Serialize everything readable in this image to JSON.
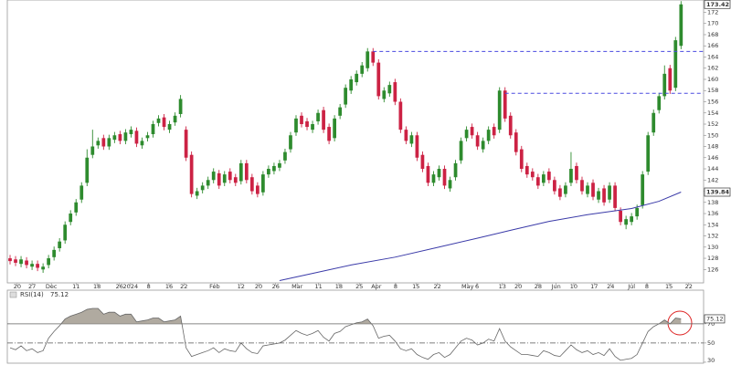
{
  "chart_data": [
    {
      "type": "candlestick",
      "xlim": [
        -0.5,
        126.1
      ],
      "xticks": [
        {
          "value": 1.3,
          "label": "20"
        },
        {
          "value": 4,
          "label": "27"
        },
        {
          "value": 7.5,
          "label": "Dec"
        },
        {
          "value": 12,
          "label": "11"
        },
        {
          "value": 15.8,
          "label": "18"
        },
        {
          "value": 19.9,
          "label": "26"
        },
        {
          "value": 21.9,
          "label": "2024"
        },
        {
          "value": 25.2,
          "label": "8"
        },
        {
          "value": 28.9,
          "label": "16"
        },
        {
          "value": 31.6,
          "label": "22"
        },
        {
          "value": 37.2,
          "label": "Feb"
        },
        {
          "value": 42,
          "label": "12"
        },
        {
          "value": 45.2,
          "label": "20"
        },
        {
          "value": 48.3,
          "label": "26"
        },
        {
          "value": 52.2,
          "label": "Mar"
        },
        {
          "value": 56.1,
          "label": "11"
        },
        {
          "value": 59.8,
          "label": "18"
        },
        {
          "value": 63.5,
          "label": "25"
        },
        {
          "value": 66.6,
          "label": "Apr"
        },
        {
          "value": 70.1,
          "label": "8"
        },
        {
          "value": 73.8,
          "label": "15"
        },
        {
          "value": 77.7,
          "label": "22"
        },
        {
          "value": 83.2,
          "label": "May"
        },
        {
          "value": 84.9,
          "label": "6"
        },
        {
          "value": 89.5,
          "label": "13"
        },
        {
          "value": 92.4,
          "label": "20"
        },
        {
          "value": 96,
          "label": "28"
        },
        {
          "value": 99.3,
          "label": "Jun"
        },
        {
          "value": 102.5,
          "label": "10"
        },
        {
          "value": 106.2,
          "label": "17"
        },
        {
          "value": 109.2,
          "label": "24"
        },
        {
          "value": 113,
          "label": "Jul"
        },
        {
          "value": 115.8,
          "label": "8"
        },
        {
          "value": 119.8,
          "label": "15"
        },
        {
          "value": 123.4,
          "label": "22"
        }
      ],
      "ylim": [
        123.6,
        174.2
      ],
      "yticks": [
        126,
        128,
        130,
        132,
        134,
        136,
        138,
        140,
        142,
        144,
        146,
        148,
        150,
        152,
        154,
        156,
        158,
        160,
        162,
        164,
        166,
        168,
        170,
        172
      ],
      "grid": false,
      "up_color": "#2e8b2e",
      "down_color": "#cc2244",
      "open": [
        128,
        127.8,
        127,
        127.6,
        126.5,
        127,
        126,
        126.8,
        128.2,
        129.8,
        131.2,
        134.5,
        136.2,
        138.5,
        141.5,
        146.5,
        148.2,
        149.5,
        148,
        149.2,
        150.2,
        149,
        150.2,
        150.8,
        148.2,
        149.5,
        150.2,
        152.2,
        153.2,
        151,
        152.3,
        153.8,
        151,
        146.5,
        139.2,
        140.2,
        141,
        142,
        143.2,
        141.5,
        143.5,
        142.5,
        141.8,
        145,
        142.5,
        141,
        139.8,
        143,
        143.6,
        144.2,
        145.5,
        147.5,
        150.5,
        153.5,
        152.5,
        151,
        152.5,
        154.5,
        151.5,
        149.5,
        153.5,
        155.5,
        158,
        159.5,
        161,
        162,
        165,
        163,
        156.5,
        157.5,
        159.5,
        156,
        151,
        148.5,
        150,
        146.5,
        144.5,
        141.5,
        142.5,
        144,
        140.5,
        142.5,
        145.5,
        149.5,
        151.5,
        150,
        147.5,
        149,
        151.5,
        151,
        158,
        153.5,
        150.5,
        147.5,
        144.5,
        143.5,
        142.5,
        141.5,
        143.5,
        142,
        140.5,
        139.5,
        141.5,
        144.5,
        142,
        139.5,
        141.5,
        138.5,
        140.5,
        138.5,
        141,
        136.5,
        134,
        134.5,
        135.5,
        137.5,
        143.5,
        150.5,
        154.5,
        157,
        162,
        158.5,
        166
      ],
      "high": [
        128.6,
        128.4,
        128.4,
        128.2,
        127.6,
        127.6,
        127.1,
        128.6,
        130.1,
        131.6,
        134.6,
        136.6,
        138.6,
        141.6,
        147.5,
        151,
        149.6,
        150.1,
        150.1,
        150.6,
        150.8,
        151.1,
        151.6,
        151.4,
        149.6,
        150.6,
        152.6,
        153.6,
        153.8,
        152.6,
        154.1,
        157.2,
        151.6,
        147.1,
        140.6,
        141.6,
        142.6,
        144.1,
        143.8,
        143.6,
        144.1,
        143.1,
        145.6,
        145.6,
        143.1,
        141.6,
        143.6,
        144.6,
        145.1,
        145.6,
        147.6,
        150.6,
        153.6,
        154.1,
        153.1,
        152.6,
        154.6,
        155.1,
        152.1,
        153.6,
        155.6,
        159.1,
        160.6,
        161.6,
        163.1,
        165.6,
        165.6,
        163.6,
        158.6,
        159.6,
        160.1,
        156.6,
        151.6,
        150.6,
        150.6,
        147.1,
        145.1,
        143.6,
        144.6,
        144.6,
        142.6,
        145.6,
        149.6,
        151.6,
        152.1,
        150.6,
        149.6,
        151.6,
        152.1,
        158.6,
        158.6,
        154.1,
        151.1,
        148.1,
        145.1,
        144.1,
        143.1,
        143.6,
        144.1,
        142.6,
        141.1,
        141.6,
        147,
        145.1,
        142.6,
        141.6,
        142.1,
        140.6,
        141.1,
        141.6,
        141.6,
        137.1,
        135.6,
        136.1,
        137.6,
        143.6,
        150.6,
        154.6,
        157.6,
        162.5,
        162.6,
        167.6,
        174
      ],
      "low": [
        126.9,
        126.6,
        126.4,
        126.2,
        125.9,
        125.7,
        125.4,
        126.2,
        127.6,
        129.2,
        130.6,
        133.9,
        135.6,
        137.9,
        140.9,
        145.9,
        147.6,
        147.4,
        147.4,
        148.6,
        148.4,
        148.4,
        149.6,
        147.9,
        147.6,
        148.9,
        149.6,
        151.6,
        150.9,
        150.4,
        151.7,
        153.2,
        145.4,
        138.9,
        138.6,
        139.6,
        140.4,
        141.4,
        140.4,
        140.9,
        141.4,
        140.9,
        141.2,
        141.4,
        139.4,
        138.9,
        139.2,
        142.4,
        143,
        143.6,
        144.9,
        146.9,
        149.9,
        151.4,
        150.9,
        150.4,
        151.9,
        150.4,
        148.4,
        148.9,
        152.9,
        154.9,
        157.4,
        158.9,
        160.4,
        161.4,
        162.4,
        156.4,
        155.9,
        156.9,
        155.4,
        150.4,
        148.4,
        147.9,
        145.4,
        143.4,
        140.9,
        140.9,
        141.9,
        140.4,
        139.9,
        141.9,
        144.9,
        148.9,
        149.4,
        147.4,
        146.9,
        148.4,
        149.4,
        150.4,
        152.4,
        149.4,
        146.4,
        143.4,
        142.4,
        141.9,
        140.4,
        140.9,
        141.4,
        139.4,
        138.4,
        138.9,
        140.9,
        141.4,
        139.4,
        138.9,
        138.4,
        137.9,
        137.4,
        137.9,
        136.4,
        133.9,
        133.2,
        133.9,
        134.9,
        136.9,
        142.9,
        149.9,
        153.9,
        156.4,
        157.4,
        157.9,
        165.4
      ],
      "close": [
        127.5,
        127.2,
        127.8,
        126.8,
        127,
        126.3,
        126.5,
        128,
        129.5,
        131,
        134,
        136,
        138,
        141,
        146,
        148,
        149,
        148,
        149.5,
        150,
        149,
        150.5,
        151,
        148.5,
        149,
        150,
        152,
        153,
        151.5,
        152,
        153.5,
        156.5,
        146,
        139.5,
        140,
        141,
        142,
        143.5,
        141,
        143,
        142,
        141.5,
        145,
        142,
        140,
        139.5,
        143,
        144,
        144.5,
        145,
        147,
        150,
        153,
        152,
        151.5,
        152,
        154,
        151,
        149,
        153,
        155,
        158.5,
        160,
        161,
        162.5,
        165,
        163,
        157,
        158,
        159,
        156,
        151,
        149,
        150,
        146,
        144,
        141.5,
        143,
        144,
        141,
        142,
        145,
        149,
        151,
        150,
        148,
        149,
        151,
        150,
        158,
        153,
        150,
        147,
        144,
        143,
        142.5,
        141,
        143,
        142,
        140,
        139,
        141,
        144,
        142,
        140,
        141,
        139,
        140,
        138,
        141,
        137,
        134.5,
        135,
        135.5,
        137,
        143,
        150,
        154,
        157,
        161,
        158,
        167,
        173.42
      ],
      "ma": {
        "color": "#3a3aa8",
        "x": [
          49,
          55,
          62,
          70,
          78,
          85,
          91,
          98,
          105,
          113,
          118,
          122
        ],
        "values": [
          124.0,
          125.3,
          126.8,
          128.2,
          130.0,
          131.6,
          133.0,
          134.6,
          135.8,
          136.9,
          138.2,
          139.84
        ]
      },
      "hlines": [
        {
          "value": 165,
          "from": 66,
          "color": "#4a4ae0"
        },
        {
          "value": 157.5,
          "from": 90,
          "color": "#4a4ae0"
        }
      ],
      "price_labels": [
        173.42,
        139.84
      ]
    },
    {
      "type": "line",
      "title": "RSI(14)",
      "color": "#666666",
      "fill_color": "#b0aaa0",
      "xlim": [
        -0.5,
        126.1
      ],
      "ylim": [
        29,
        105
      ],
      "yticks": [
        70,
        50,
        30
      ],
      "hlines": [
        {
          "value": 70,
          "style": "solid"
        },
        {
          "value": 50,
          "style": "dashdot"
        }
      ],
      "fill_above": 70,
      "values": [
        45,
        43,
        47,
        42,
        44,
        40,
        42,
        55,
        62,
        68,
        75,
        78,
        80,
        82,
        85,
        86,
        86,
        80,
        82,
        82,
        78,
        80,
        80,
        72,
        73,
        74,
        76,
        76,
        72,
        73,
        74,
        78,
        45,
        36,
        38,
        40,
        42,
        45,
        40,
        44,
        42,
        41,
        50,
        44,
        40,
        39,
        47,
        48,
        49,
        50,
        53,
        58,
        63,
        60,
        58,
        60,
        63,
        56,
        52,
        60,
        62,
        67,
        69,
        71,
        72,
        75,
        68,
        55,
        57,
        58,
        52,
        44,
        42,
        44,
        38,
        35,
        33,
        38,
        40,
        35,
        38,
        45,
        52,
        55,
        53,
        48,
        50,
        54,
        52,
        65,
        52,
        46,
        42,
        38,
        38,
        37,
        36,
        42,
        40,
        37,
        36,
        42,
        48,
        43,
        40,
        42,
        38,
        40,
        37,
        44,
        36,
        32,
        33,
        34,
        38,
        50,
        62,
        67,
        70,
        74,
        70,
        76,
        75.12
      ]
    }
  ]
}
